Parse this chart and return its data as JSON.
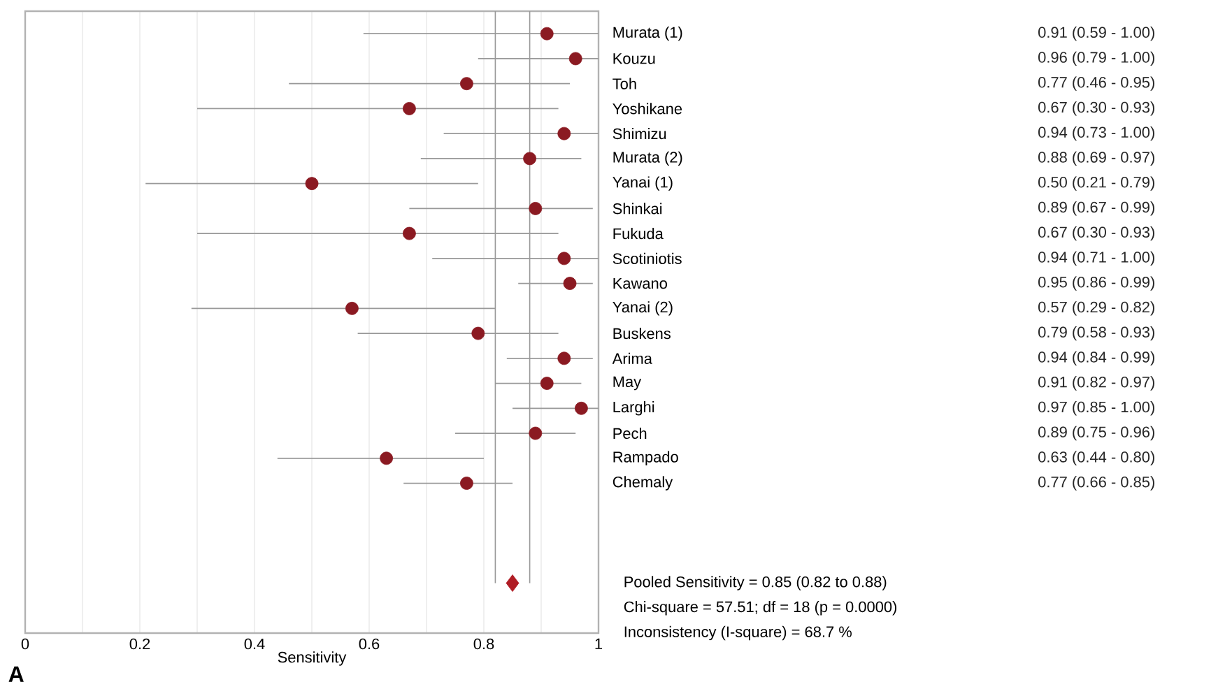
{
  "chart_data": {
    "type": "scatter",
    "orientation": "horizontal",
    "xlabel": "Sensitivity",
    "categories": [
      "Murata (1)",
      "Kouzu",
      "Toh",
      "Yoshikane",
      "Shimizu",
      "Murata (2)",
      "Yanai (1)",
      "Shinkai",
      "Fukuda",
      "Scotiniotis",
      "Kawano",
      "Yanai (2)",
      "Buskens",
      "Arima",
      "May",
      "Larghi",
      "Pech",
      "Rampado",
      "Chemaly",
      null,
      null,
      null,
      null
    ],
    "series": [
      {
        "color": "#8b1a22",
        "marker": "circle",
        "values": [
          0.91,
          0.96,
          0.77,
          0.67,
          0.94,
          0.88,
          0.5,
          0.89,
          0.67,
          0.94,
          0.95,
          0.57,
          0.79,
          0.94,
          0.91,
          0.97,
          0.89,
          0.63,
          0.77,
          null,
          null,
          null,
          null
        ],
        "errors": [
          [
            0.59,
            1.0
          ],
          [
            0.79,
            1.0
          ],
          [
            0.46,
            0.95
          ],
          [
            0.3,
            0.93
          ],
          [
            0.73,
            1.0
          ],
          [
            0.69,
            0.97
          ],
          [
            0.21,
            0.79
          ],
          [
            0.67,
            0.99
          ],
          [
            0.3,
            0.93
          ],
          [
            0.71,
            1.0
          ],
          [
            0.86,
            0.99
          ],
          [
            0.29,
            0.82
          ],
          [
            0.58,
            0.93
          ],
          [
            0.84,
            0.99
          ],
          [
            0.82,
            0.97
          ],
          [
            0.85,
            1.0
          ],
          [
            0.75,
            0.96
          ],
          [
            0.44,
            0.8
          ],
          [
            0.66,
            0.85
          ],
          null,
          null,
          null,
          null
        ],
        "value_labels": [
          "0.91 (0.59 - 1.00)",
          "0.96 (0.79 - 1.00)",
          "0.77 (0.46 - 0.95)",
          "0.67 (0.30 - 0.93)",
          "0.94 (0.73 - 1.00)",
          "0.88 (0.69 - 0.97)",
          "0.50 (0.21 - 0.79)",
          "0.89 (0.67 - 0.99)",
          "0.67 (0.30 - 0.93)",
          "0.94 (0.71 - 1.00)",
          "0.95 (0.86 - 0.99)",
          "0.57 (0.29 - 0.82)",
          "0.79 (0.58 - 0.93)",
          "0.94 (0.84 - 0.99)",
          "0.91 (0.82 - 0.97)",
          "0.97 (0.85 - 1.00)",
          "0.89 (0.75 - 0.96)",
          "0.63 (0.44 - 0.80)",
          "0.77 (0.66 - 0.85)",
          null,
          null,
          null,
          null
        ]
      },
      {
        "color": "#b01c24",
        "marker": "diamond",
        "values": [
          null,
          null,
          null,
          null,
          null,
          null,
          null,
          null,
          null,
          null,
          null,
          null,
          null,
          null,
          null,
          null,
          null,
          null,
          null,
          null,
          null,
          null,
          0.85
        ]
      }
    ],
    "xlim": [
      0,
      1
    ],
    "xticks": [
      0,
      0.2,
      0.4,
      0.6,
      0.8,
      1
    ],
    "grid": "x",
    "ref_lines": [
      {
        "axis": "x",
        "value": 0.82,
        "color": "#999999"
      },
      {
        "axis": "x",
        "value": 0.88,
        "color": "#999999"
      }
    ],
    "annotations": [
      "Pooled Sensitivity = 0.85 (0.82 to 0.88)",
      "Chi-square = 57.51; df = 18 (p = 0.0000)",
      "Inconsistency (I-square) = 68.7 %",
      "A"
    ]
  }
}
